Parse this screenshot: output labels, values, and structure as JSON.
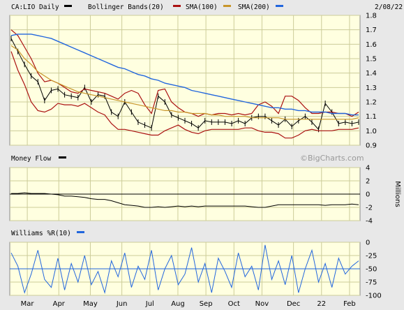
{
  "header": {
    "symbol_label": "CA:LIO Daily",
    "bollinger_label": "Bollinger Bands(20)",
    "sma100_label": "SMA(100)",
    "sma200_label": "SMA(200)",
    "date_label": "2/08/22"
  },
  "watermark": "©BigCharts.com",
  "money_flow_label": "Money Flow",
  "money_flow_units": "Millions",
  "williams_label": "Williams %R(10)",
  "colors": {
    "price": "#000000",
    "bollinger": "#aa1111",
    "sma100": "#c8962a",
    "sma200": "#2266dd",
    "money_flow": "#000000",
    "williams": "#2266dd",
    "panel_bg": "#ffffe0",
    "grid": "#cccc99",
    "frame_bg": "#e8e8e8"
  },
  "chart_data": [
    {
      "type": "line",
      "title": "CA:LIO Daily",
      "series": [
        {
          "name": "CA:LIO Daily",
          "role": "price",
          "values": [
            1.64,
            1.55,
            1.46,
            1.38,
            1.34,
            1.21,
            1.28,
            1.29,
            1.25,
            1.24,
            1.23,
            1.3,
            1.2,
            1.25,
            1.24,
            1.13,
            1.1,
            1.2,
            1.13,
            1.06,
            1.04,
            1.02,
            1.24,
            1.2,
            1.11,
            1.09,
            1.07,
            1.05,
            1.02,
            1.07,
            1.06,
            1.06,
            1.06,
            1.05,
            1.07,
            1.05,
            1.09,
            1.1,
            1.1,
            1.07,
            1.04,
            1.08,
            1.03,
            1.07,
            1.1,
            1.06,
            1.01,
            1.19,
            1.13,
            1.05,
            1.06,
            1.05,
            1.06
          ]
        },
        {
          "name": "Bollinger Bands(20)",
          "role": "upper",
          "values": [
            1.7,
            1.66,
            1.58,
            1.5,
            1.4,
            1.34,
            1.35,
            1.33,
            1.3,
            1.27,
            1.26,
            1.29,
            1.28,
            1.27,
            1.26,
            1.24,
            1.22,
            1.26,
            1.28,
            1.26,
            1.18,
            1.12,
            1.28,
            1.29,
            1.2,
            1.16,
            1.13,
            1.12,
            1.1,
            1.12,
            1.11,
            1.12,
            1.12,
            1.11,
            1.12,
            1.11,
            1.12,
            1.18,
            1.2,
            1.17,
            1.12,
            1.24,
            1.24,
            1.21,
            1.16,
            1.12,
            1.12,
            1.13,
            1.13,
            1.12,
            1.12,
            1.1,
            1.13
          ]
        },
        {
          "name": "Bollinger Bands(20)",
          "role": "lower",
          "values": [
            1.55,
            1.42,
            1.32,
            1.2,
            1.14,
            1.13,
            1.15,
            1.19,
            1.18,
            1.18,
            1.17,
            1.19,
            1.16,
            1.13,
            1.11,
            1.05,
            1.01,
            1.01,
            1.0,
            0.99,
            0.98,
            0.97,
            0.97,
            1.0,
            1.02,
            1.04,
            1.01,
            0.99,
            0.98,
            1.0,
            1.01,
            1.01,
            1.01,
            1.01,
            1.01,
            1.02,
            1.02,
            1.0,
            0.99,
            0.99,
            0.98,
            0.95,
            0.95,
            0.97,
            1.0,
            1.01,
            1.0,
            1.0,
            1.0,
            1.01,
            1.01,
            1.01,
            1.02
          ]
        },
        {
          "name": "SMA(100)",
          "values": [
            1.59,
            1.56,
            1.5,
            1.46,
            1.41,
            1.38,
            1.35,
            1.33,
            1.31,
            1.29,
            1.27,
            1.26,
            1.25,
            1.24,
            1.23,
            1.22,
            1.21,
            1.2,
            1.19,
            1.18,
            1.17,
            1.16,
            1.15,
            1.14,
            1.14,
            1.13,
            1.13,
            1.12,
            1.12,
            1.12,
            1.11,
            1.11,
            1.1,
            1.1,
            1.1,
            1.1,
            1.09,
            1.09,
            1.09,
            1.09,
            1.09,
            1.08,
            1.08,
            1.08,
            1.08,
            1.08,
            1.08,
            1.08,
            1.08,
            1.08,
            1.08,
            1.08,
            1.09
          ]
        },
        {
          "name": "SMA(200)",
          "values": [
            1.66,
            1.67,
            1.67,
            1.67,
            1.66,
            1.65,
            1.64,
            1.62,
            1.6,
            1.58,
            1.56,
            1.54,
            1.52,
            1.5,
            1.48,
            1.46,
            1.44,
            1.43,
            1.41,
            1.39,
            1.38,
            1.36,
            1.35,
            1.33,
            1.32,
            1.31,
            1.3,
            1.28,
            1.27,
            1.26,
            1.25,
            1.24,
            1.23,
            1.22,
            1.21,
            1.2,
            1.19,
            1.18,
            1.17,
            1.16,
            1.16,
            1.15,
            1.15,
            1.14,
            1.14,
            1.13,
            1.13,
            1.13,
            1.12,
            1.12,
            1.12,
            1.11,
            1.11
          ]
        }
      ],
      "ylim": [
        0.9,
        1.8
      ],
      "yticks": [
        0.9,
        1.0,
        1.1,
        1.2,
        1.3,
        1.4,
        1.5,
        1.6,
        1.7,
        1.8
      ],
      "grid": true,
      "legend": "top-left"
    },
    {
      "type": "line",
      "title": "Money Flow",
      "ylabel": "Millions",
      "series": [
        {
          "name": "Money Flow",
          "values": [
            0.1,
            0.1,
            0.2,
            0.1,
            0.1,
            0.1,
            0.0,
            -0.1,
            -0.3,
            -0.3,
            -0.4,
            -0.5,
            -0.7,
            -0.8,
            -0.8,
            -1.0,
            -1.3,
            -1.6,
            -1.7,
            -1.8,
            -2.0,
            -2.0,
            -1.9,
            -2.0,
            -1.9,
            -1.8,
            -1.9,
            -1.8,
            -1.9,
            -1.8,
            -1.8,
            -1.8,
            -1.8,
            -1.8,
            -1.8,
            -1.8,
            -1.9,
            -2.0,
            -2.0,
            -1.8,
            -1.6,
            -1.6,
            -1.6,
            -1.6,
            -1.6,
            -1.6,
            -1.6,
            -1.7,
            -1.6,
            -1.6,
            -1.6,
            -1.5,
            -1.6
          ]
        }
      ],
      "ylim": [
        -4,
        4
      ],
      "yticks": [
        -4,
        -2,
        0,
        2,
        4
      ],
      "grid": true
    },
    {
      "type": "line",
      "title": "Williams %R(10)",
      "series": [
        {
          "name": "Williams %R(10)",
          "values": [
            -20,
            -45,
            -95,
            -60,
            -15,
            -70,
            -85,
            -30,
            -90,
            -40,
            -75,
            -25,
            -80,
            -55,
            -95,
            -35,
            -65,
            -20,
            -85,
            -45,
            -70,
            -15,
            -90,
            -50,
            -25,
            -80,
            -60,
            -10,
            -75,
            -40,
            -95,
            -30,
            -55,
            -85,
            -20,
            -65,
            -45,
            -90,
            -5,
            -70,
            -35,
            -80,
            -25,
            -95,
            -50,
            -15,
            -75,
            -40,
            -85,
            -30,
            -60,
            -45,
            -35
          ]
        }
      ],
      "ylim": [
        -100,
        0
      ],
      "yticks": [
        -100,
        -75,
        -50,
        -25,
        0
      ],
      "grid": true
    }
  ],
  "x_axis": {
    "labels": [
      "Mar",
      "Apr",
      "May",
      "Jun",
      "Jul",
      "Aug",
      "Sep",
      "Oct",
      "Nov",
      "Dec",
      "22",
      "Feb"
    ],
    "positions": [
      0.05,
      0.14,
      0.23,
      0.32,
      0.4,
      0.48,
      0.56,
      0.64,
      0.72,
      0.81,
      0.89,
      0.97
    ]
  }
}
